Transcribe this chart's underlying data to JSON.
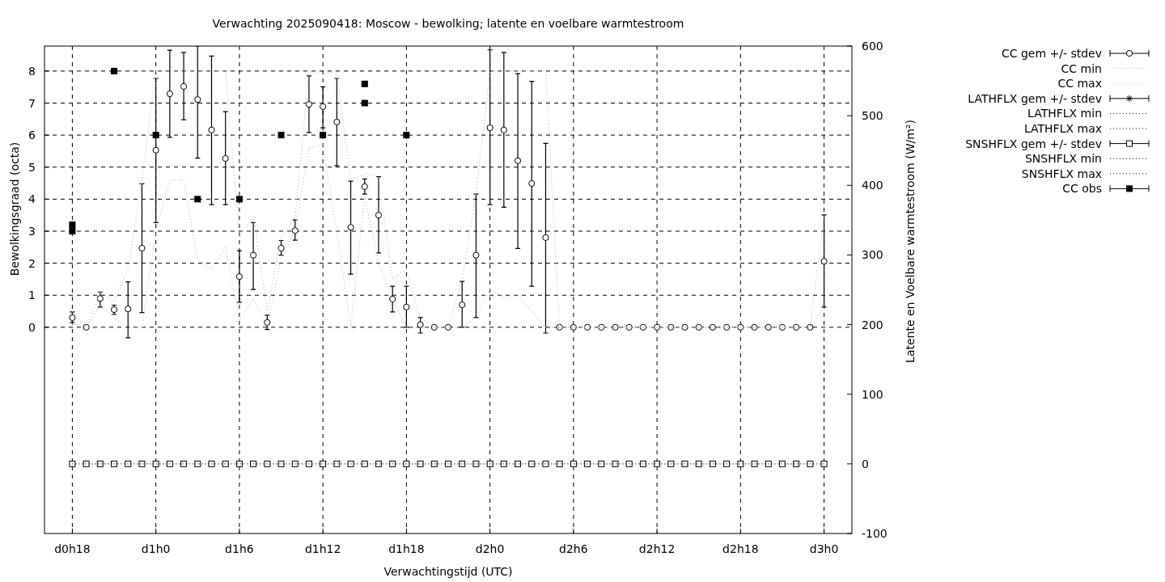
{
  "chart_data": {
    "type": "scatter",
    "title": "Verwachting 2025090418: Moscow - bewolking; latente en voelbare warmtestroom",
    "xlabel": "Verwachtingstijd (UTC)",
    "ylabel": "Bewolkingsgraad (octa)",
    "y2label": "Latente en Voelbare warmtestroom (W/m²)",
    "categories": [
      "d0h18",
      null,
      null,
      null,
      null,
      null,
      "d1h0",
      null,
      null,
      null,
      null,
      null,
      "d1h6",
      null,
      null,
      null,
      null,
      null,
      "d1h12",
      null,
      null,
      null,
      null,
      null,
      "d1h18",
      null,
      null,
      null,
      null,
      null,
      "d2h0",
      null,
      null,
      null,
      null,
      null,
      "d2h6",
      null,
      null,
      null,
      null,
      null,
      "d2h12",
      null,
      null,
      null,
      null,
      null,
      "d2h18",
      null,
      null,
      null,
      null,
      null,
      "d3h0"
    ],
    "ylim": [
      -6.44,
      8.78
    ],
    "yticks": [
      0,
      1,
      2,
      3,
      4,
      5,
      6,
      7,
      8
    ],
    "y2lim": [
      -100,
      600
    ],
    "y2ticks": [
      -100,
      0,
      100,
      200,
      300,
      400,
      500,
      600
    ],
    "grid": true,
    "legend": "right",
    "series": [
      {
        "name": "CC gem +/- stdev",
        "marker": "circle",
        "color": "#000000",
        "values": [
          0.3,
          0,
          0.9,
          0.55,
          0.57,
          2.47,
          5.53,
          7.29,
          7.52,
          7.11,
          6.16,
          5.27,
          1.58,
          2.25,
          0.15,
          2.47,
          3.02,
          6.96,
          6.89,
          6.41,
          3.12,
          4.39,
          3.5,
          0.88,
          0.63,
          0.08,
          0,
          0,
          0.7,
          2.25,
          6.23,
          6.16,
          5.2,
          4.49,
          2.8,
          0,
          0,
          0,
          0,
          0,
          0,
          0,
          0,
          0,
          0,
          0,
          0,
          0,
          0,
          0,
          0,
          0,
          0,
          0,
          2.06
        ],
        "errors": [
          [
            0.15,
            0.48
          ],
          null,
          [
            0.63,
            1.1
          ],
          [
            0.4,
            0.69
          ],
          [
            -0.33,
            1.42
          ],
          [
            0.46,
            4.48
          ],
          [
            3.27,
            7.77
          ],
          [
            5.93,
            8.65
          ],
          [
            6.48,
            8.58
          ],
          [
            5.28,
            8.78
          ],
          [
            3.83,
            8.47
          ],
          [
            3.83,
            6.73
          ],
          [
            0.78,
            2.39
          ],
          [
            1.18,
            3.27
          ],
          [
            -0.07,
            0.38
          ],
          [
            2.25,
            2.71
          ],
          [
            2.72,
            3.35
          ],
          [
            6.08,
            7.85
          ],
          [
            6.23,
            7.51
          ],
          [
            5.04,
            7.77
          ],
          [
            1.66,
            4.56
          ],
          [
            4.16,
            4.63
          ],
          [
            2.32,
            4.7
          ],
          [
            0.48,
            1.28
          ],
          [
            0,
            1.28
          ],
          [
            -0.18,
            0.3
          ],
          null,
          null,
          [
            0,
            1.43
          ],
          [
            0.3,
            4.16
          ],
          [
            3.83,
            8.66
          ],
          [
            3.75,
            8.58
          ],
          [
            2.46,
            7.92
          ],
          [
            1.28,
            7.68
          ],
          [
            -0.18,
            5.74
          ],
          null,
          null,
          null,
          null,
          null,
          null,
          null,
          null,
          null,
          null,
          null,
          null,
          null,
          null,
          null,
          null,
          null,
          null,
          null,
          [
            0.63,
            3.51
          ]
        ]
      },
      {
        "name": "CC min",
        "type": "line",
        "line_style": "dotted",
        "color": "#bbbbbb",
        "values": [
          0.1,
          0,
          0.7,
          0.3,
          0,
          0,
          3,
          4.6,
          4.6,
          2.1,
          1.8,
          2.5,
          0.2,
          0.9,
          0,
          2.2,
          3,
          5.6,
          5.7,
          3,
          0,
          4.1,
          2,
          0.9,
          0,
          0,
          0,
          0,
          0,
          0.3,
          1.2,
          0.9,
          1,
          0.5,
          0,
          0,
          0,
          0,
          0,
          0,
          0,
          0,
          0,
          0,
          0,
          0,
          0,
          0,
          0,
          0,
          0,
          0,
          0,
          0,
          0.63
        ]
      },
      {
        "name": "CC max",
        "type": "line",
        "line_style": "dotted",
        "color": "#bbbbbb",
        "values": [
          0.5,
          0,
          1.1,
          0.8,
          1.8,
          4.6,
          8,
          8,
          8,
          8,
          8,
          8,
          2.8,
          3.5,
          0.5,
          2.8,
          3.4,
          8,
          7.9,
          8,
          4.6,
          4.8,
          4.7,
          1.5,
          1.8,
          0.3,
          0,
          0,
          1.5,
          4.2,
          8,
          8,
          8,
          8,
          8,
          0,
          0,
          0,
          0,
          0,
          0,
          0,
          0,
          0,
          0,
          0,
          0,
          0,
          0,
          0,
          0,
          0,
          0,
          0,
          3.5
        ]
      },
      {
        "name": "LATHFLX gem +/- stdev",
        "marker": "star",
        "axis": "y2",
        "color": "#000000",
        "values": [
          null,
          null,
          null,
          null,
          null,
          null,
          null,
          null,
          null,
          null,
          null,
          null,
          null,
          null,
          null,
          null,
          null,
          null,
          null,
          null,
          null,
          null,
          null,
          null,
          null,
          null,
          null,
          null,
          null,
          null,
          null,
          null,
          null,
          null,
          null,
          null,
          null,
          null,
          null,
          null,
          null,
          null,
          null,
          null,
          null,
          null,
          null,
          null,
          null,
          null,
          null,
          null,
          null,
          null,
          null
        ]
      },
      {
        "name": "LATHFLX min",
        "type": "line",
        "line_style": "dotted",
        "axis": "y2",
        "color": "#000000",
        "values": [
          null,
          null,
          null,
          null,
          null,
          null,
          null,
          null,
          null,
          null,
          null,
          null,
          null,
          null,
          null,
          null,
          null,
          null,
          null,
          null,
          null,
          null,
          null,
          null,
          null,
          null,
          null,
          null,
          null,
          null,
          null,
          null,
          null,
          null,
          null,
          null,
          null,
          null,
          null,
          null,
          null,
          null,
          null,
          null,
          null,
          null,
          null,
          null,
          null,
          null,
          null,
          null,
          null,
          null,
          null
        ]
      },
      {
        "name": "LATHFLX max",
        "type": "line",
        "line_style": "dotted",
        "axis": "y2",
        "color": "#000000",
        "values": [
          null,
          null,
          null,
          null,
          null,
          null,
          null,
          null,
          null,
          null,
          null,
          null,
          null,
          null,
          null,
          null,
          null,
          null,
          null,
          null,
          null,
          null,
          null,
          null,
          null,
          null,
          null,
          null,
          null,
          null,
          null,
          null,
          null,
          null,
          null,
          null,
          null,
          null,
          null,
          null,
          null,
          null,
          null,
          null,
          null,
          null,
          null,
          null,
          null,
          null,
          null,
          null,
          null,
          null,
          null
        ]
      },
      {
        "name": "SNSHFLX gem +/- stdev",
        "marker": "square",
        "axis": "y2",
        "color": "#000000",
        "values": [
          0,
          0,
          0,
          0,
          0,
          0,
          0,
          0,
          0,
          0,
          0,
          0,
          0,
          0,
          0,
          0,
          0,
          0,
          0,
          0,
          0,
          0,
          0,
          0,
          0,
          0,
          0,
          0,
          0,
          0,
          0,
          0,
          0,
          0,
          0,
          0,
          0,
          0,
          0,
          0,
          0,
          0,
          0,
          0,
          0,
          0,
          0,
          0,
          0,
          0,
          0,
          0,
          0,
          0,
          0
        ]
      },
      {
        "name": "SNSHFLX min",
        "type": "line",
        "line_style": "dotted",
        "axis": "y2",
        "color": "#000000",
        "values": [
          0,
          0,
          0,
          0,
          0,
          0,
          0,
          0,
          0,
          0,
          0,
          0,
          0,
          0,
          0,
          0,
          0,
          0,
          0,
          0,
          0,
          0,
          0,
          0,
          0,
          0,
          0,
          0,
          0,
          0,
          0,
          0,
          0,
          0,
          0,
          0,
          0,
          0,
          0,
          0,
          0,
          0,
          0,
          0,
          0,
          0,
          0,
          0,
          0,
          0,
          0,
          0,
          0,
          0,
          0
        ]
      },
      {
        "name": "SNSHFLX max",
        "type": "line",
        "line_style": "dotted",
        "axis": "y2",
        "color": "#000000",
        "values": [
          null,
          null,
          null,
          null,
          null,
          null,
          null,
          null,
          null,
          null,
          null,
          null,
          null,
          null,
          null,
          null,
          null,
          null,
          null,
          null,
          null,
          null,
          null,
          null,
          null,
          null,
          null,
          null,
          null,
          null,
          null,
          null,
          null,
          null,
          null,
          null,
          null,
          null,
          null,
          null,
          null,
          null,
          null,
          null,
          null,
          null,
          null,
          null,
          null,
          null,
          null,
          null,
          null,
          null,
          null
        ]
      },
      {
        "name": "CC obs",
        "marker": "square",
        "color": "#000000",
        "values": [
          3.0,
          null,
          null,
          8,
          null,
          null,
          6,
          null,
          null,
          4,
          null,
          null,
          4,
          null,
          null,
          6,
          null,
          null,
          6,
          null,
          null,
          7.6,
          null,
          null,
          6,
          null,
          null,
          null,
          null,
          null,
          null,
          null,
          null,
          null,
          null,
          null,
          null,
          null,
          null,
          null,
          null,
          null,
          null,
          null,
          null,
          null,
          null,
          null,
          null,
          null,
          null,
          null,
          null,
          null,
          null
        ]
      },
      {
        "marker": "square",
        "color": "#000000",
        "values": [
          3.2,
          null,
          null,
          null,
          null,
          null,
          null,
          null,
          null,
          null,
          null,
          null,
          null,
          null,
          null,
          null,
          null,
          null,
          null,
          null,
          null,
          7,
          null,
          null,
          null,
          null,
          null,
          null,
          null,
          null,
          null,
          null,
          null,
          null,
          null,
          null,
          null,
          null,
          null,
          null,
          null,
          null,
          null,
          null,
          null,
          null,
          null,
          null,
          null,
          null,
          null,
          null,
          null,
          null,
          null
        ]
      }
    ]
  }
}
